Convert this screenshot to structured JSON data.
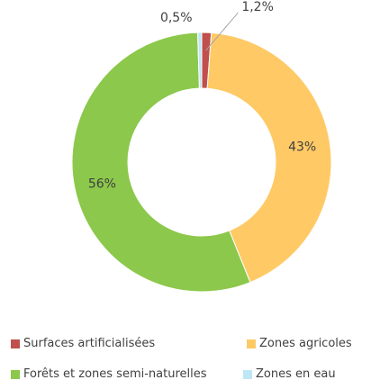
{
  "chart_data": {
    "type": "pie",
    "donut": true,
    "title": "",
    "categories": [
      "Surfaces artificialisées",
      "Zones agricoles",
      "Forêts et zones semi-naturelles",
      "Zones en eau"
    ],
    "values": [
      1.2,
      43,
      56,
      0.5
    ],
    "data_labels": [
      "1,2%",
      "43%",
      "56%",
      "0,5%"
    ],
    "colors": [
      "#c0504d",
      "#ffc966",
      "#8cc84b",
      "#bde7f5"
    ],
    "legend_position": "bottom"
  }
}
